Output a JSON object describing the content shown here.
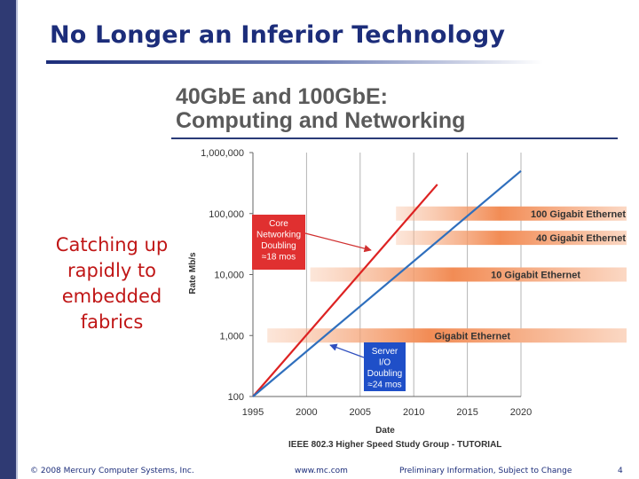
{
  "slide": {
    "title": "No Longer an Inferior Technology",
    "side_text_lines": [
      "Catching up",
      "rapidly to",
      "embedded",
      "fabrics"
    ]
  },
  "footer": {
    "copyright": "© 2008 Mercury Computer Systems, Inc.",
    "url": "www.mc.com",
    "notice": "Preliminary Information, Subject to Change",
    "page": "4"
  },
  "chart_data": {
    "type": "line",
    "title_lines": [
      "40GbE and 100GbE:",
      "Computing and Networking"
    ],
    "xlabel": "Date",
    "ylabel": "Rate Mb/s",
    "y_scale": "log",
    "xlim": [
      1995,
      2020
    ],
    "ylim": [
      100,
      1000000
    ],
    "x_ticks": [
      "1995",
      "2000",
      "2005",
      "2010",
      "2015",
      "2020"
    ],
    "y_ticks": [
      "100",
      "1,000",
      "10,000",
      "100,000",
      "1,000,000"
    ],
    "grid": true,
    "source": "IEEE 802.3 Higher Speed Study Group - TUTORIAL",
    "series": [
      {
        "name": "Core Networking Doubling ≈18 mos",
        "color": "#dd2222",
        "points": [
          [
            1995,
            100
          ],
          [
            2012.2,
            300000
          ]
        ]
      },
      {
        "name": "Server I/O Doubling ≈24 mos",
        "color": "#2f6fbd",
        "points": [
          [
            1995,
            100
          ],
          [
            2020,
            500000
          ]
        ]
      }
    ],
    "bands": [
      {
        "label": "100 Gigabit Ethernet",
        "value": 100000,
        "start_year": 2010
      },
      {
        "label": "40 Gigabit Ethernet",
        "value": 40000,
        "start_year": 2010
      },
      {
        "label": "10 Gigabit Ethernet",
        "value": 10000,
        "start_year": 2002
      },
      {
        "label": "Gigabit Ethernet",
        "value": 1000,
        "start_year": 1998
      }
    ],
    "callouts": [
      {
        "lines": [
          "Core",
          "Networking",
          "Doubling",
          "≈18 mos"
        ],
        "color": "#e03030"
      },
      {
        "lines": [
          "Server",
          "I/O",
          "Doubling",
          "≈24 mos"
        ],
        "color": "#1f4fc8"
      }
    ],
    "colors": {
      "band": "#f28c55",
      "accent": "#1c2d7a"
    }
  }
}
